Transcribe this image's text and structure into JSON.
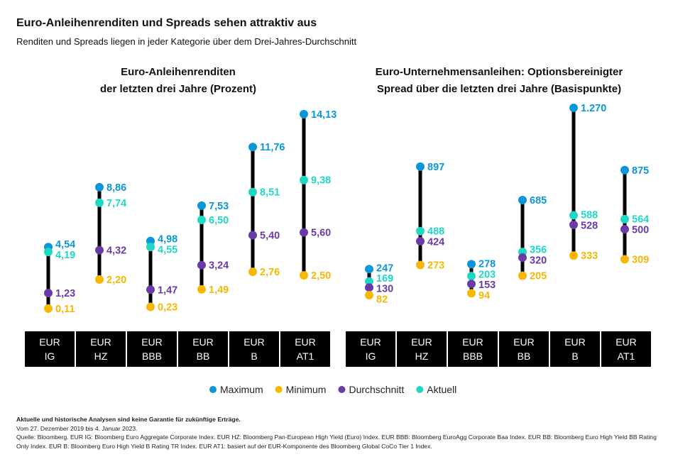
{
  "title": "Euro-Anleihenrenditen und Spreads sehen attraktiv aus",
  "subtitle": "Renditen und Spreads liegen in jeder Kategorie über dem Drei-Jahres-Durchschnitt",
  "colors": {
    "Maximum": "#0a97d9",
    "Minimum": "#f8b700",
    "Durchschnitt": "#6a3aa6",
    "Aktuell": "#1fd8c3"
  },
  "legend": [
    "Maximum",
    "Minimum",
    "Durchschnitt",
    "Aktuell"
  ],
  "chart_data": [
    {
      "type": "range-dot",
      "title_lines": [
        "Euro-Anleihenrenditen",
        "der letzten drei Jahre (Prozent)"
      ],
      "categories": [
        [
          "EUR",
          "IG"
        ],
        [
          "EUR",
          "HZ"
        ],
        [
          "EUR",
          "BBB"
        ],
        [
          "EUR",
          "BB"
        ],
        [
          "EUR",
          "B"
        ],
        [
          "EUR",
          "AT1"
        ]
      ],
      "series": [
        {
          "name": "Maximum",
          "values": [
            4.54,
            8.86,
            4.98,
            7.53,
            11.76,
            14.13
          ],
          "labels": [
            "4,54",
            "8,86",
            "4,98",
            "7,53",
            "11,76",
            "14,13"
          ]
        },
        {
          "name": "Aktuell",
          "values": [
            4.19,
            7.74,
            4.55,
            6.5,
            8.51,
            9.38
          ],
          "labels": [
            "4,19",
            "7,74",
            "4,55",
            "6,50",
            "8,51",
            "9,38"
          ]
        },
        {
          "name": "Durchschnitt",
          "values": [
            1.23,
            4.32,
            1.47,
            3.24,
            5.4,
            5.6
          ],
          "labels": [
            "1,23",
            "4,32",
            "1,47",
            "3,24",
            "5,40",
            "5,60"
          ]
        },
        {
          "name": "Minimum",
          "values": [
            0.11,
            2.2,
            0.23,
            1.49,
            2.76,
            2.5
          ],
          "labels": [
            "0,11",
            "2,20",
            "0,23",
            "1,49",
            "2,76",
            "2,50"
          ]
        }
      ]
    },
    {
      "type": "range-dot",
      "title_lines": [
        "Euro-Unternehmensanleihen: Optionsbereinigter",
        "Spread über die letzten drei Jahre (Basispunkte)"
      ],
      "categories": [
        [
          "EUR",
          "IG"
        ],
        [
          "EUR",
          "HZ"
        ],
        [
          "EUR",
          "BBB"
        ],
        [
          "EUR",
          "BB"
        ],
        [
          "EUR",
          "B"
        ],
        [
          "EUR",
          "AT1"
        ]
      ],
      "series": [
        {
          "name": "Maximum",
          "values": [
            247,
            897,
            278,
            685,
            1270,
            875
          ],
          "labels": [
            "247",
            "897",
            "278",
            "685",
            "1.270",
            "875"
          ]
        },
        {
          "name": "Aktuell",
          "values": [
            169,
            488,
            203,
            356,
            588,
            564
          ],
          "labels": [
            "169",
            "488",
            "203",
            "356",
            "588",
            "564"
          ]
        },
        {
          "name": "Durchschnitt",
          "values": [
            130,
            424,
            153,
            320,
            528,
            500
          ],
          "labels": [
            "130",
            "424",
            "153",
            "320",
            "528",
            "500"
          ]
        },
        {
          "name": "Minimum",
          "values": [
            82,
            273,
            94,
            205,
            333,
            309
          ],
          "labels": [
            "82",
            "273",
            "94",
            "205",
            "333",
            "309"
          ]
        }
      ]
    }
  ],
  "footer": {
    "disclaimer": "Aktuelle und historische Analysen sind keine Garantie für zukünftige Erträge.",
    "period": "Vom 27. Dezember 2019 bis 4. Januar 2023.",
    "source": "Quelle: Bloomberg. EUR IG: Bloomberg Euro Aggregate Corporate Index. EUR HZ: Bloomberg Pan-European High Yield (Euro) Index. EUR BBB: Bloomberg EuroAgg Corporate Baa Index. EUR BB: Bloomberg Euro High Yield BB Rating Only Index. EUR B: Bloomberg Euro High Yield B Rating TR Index. EUR AT1: basiert auf der EUR-Komponente des Bloomberg Global CoCo Tier 1 Index."
  }
}
